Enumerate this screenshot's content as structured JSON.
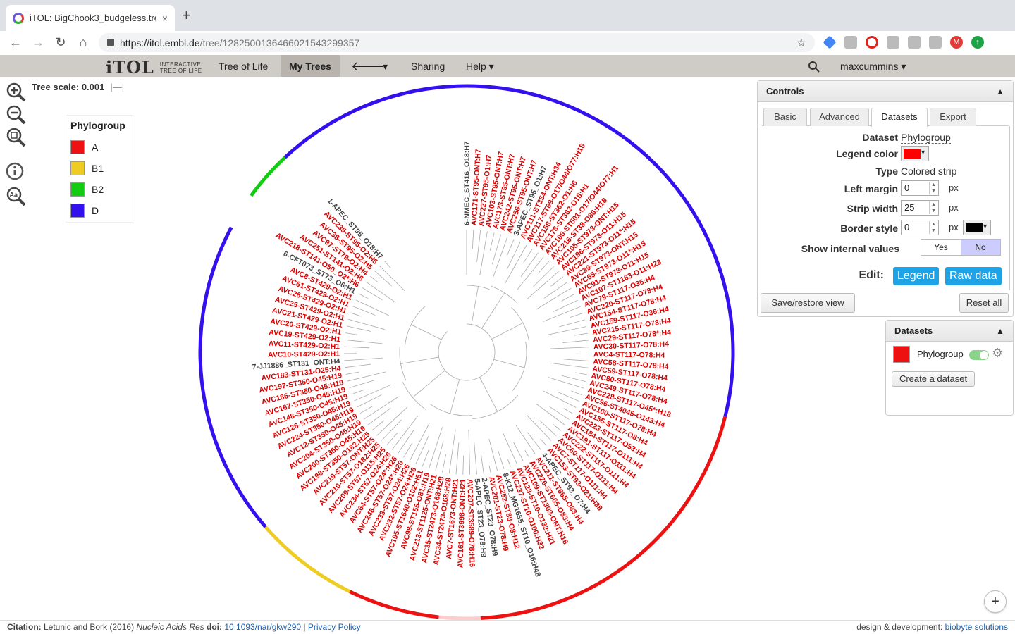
{
  "browser": {
    "tab_title": "iTOL: BigChook3_budgeless.tre",
    "tab_close": "×",
    "new_tab": "+",
    "url_host": "https://itol.embl.de",
    "url_path": "/tree/128250013646602154329935​7",
    "profile_initial": "M"
  },
  "menu": {
    "logo_text": "iTOL",
    "logo_sub_1": "INTERACTIVE",
    "logo_sub_2": "TREE OF LIFE",
    "tree_of_life": "Tree of Life",
    "my_trees": "My Trees",
    "back_arrow": "🡐",
    "dropdown_caret": "▾",
    "sharing": "Sharing",
    "help": "Help ▾",
    "search_icon": "search-icon",
    "user": "maxcummins ▾"
  },
  "tree_scale": {
    "label": "Tree scale: 0.001"
  },
  "legend": {
    "title": "Phylogroup",
    "items": [
      {
        "label": "A",
        "color": "#ee1111"
      },
      {
        "label": "B1",
        "color": "#eecc22"
      },
      {
        "label": "B2",
        "color": "#11cc11"
      },
      {
        "label": "D",
        "color": "#3311ee"
      }
    ]
  },
  "tree": {
    "label_colors": {
      "highlight": "#dd0000",
      "other": "#444444"
    },
    "strip": [
      {
        "from": -43,
        "to": 104,
        "color": "#3311ee"
      },
      {
        "from": 104,
        "to": 177,
        "color": "#ee1111"
      },
      {
        "from": 177,
        "to": 186,
        "color": "#ffcccc"
      },
      {
        "from": 186,
        "to": 206,
        "color": "#ee1111"
      },
      {
        "from": 206,
        "to": 229,
        "color": "#eecc22"
      },
      {
        "from": 229,
        "to": 298,
        "color": "#3311ee"
      },
      {
        "from": 298,
        "to": 306,
        "color": "#ffffff"
      },
      {
        "from": 306,
        "to": 317,
        "color": "#11cc11"
      }
    ],
    "labels": [
      {
        "t": "6-NMEC_ST416_O18:H7",
        "g": 0
      },
      {
        "t": "AVC171-ST95-ONT:H7",
        "g": 1
      },
      {
        "t": "AVC227-ST95-O1:H7",
        "g": 1
      },
      {
        "t": "AVC103-ST95-ONT:H7",
        "g": 1
      },
      {
        "t": "AVC173-ST95-ONT:H7",
        "g": 1
      },
      {
        "t": "AVC242-ST95-ONT:H7",
        "g": 1
      },
      {
        "t": "AVC256-ST95-ONT:H7",
        "g": 1
      },
      {
        "t": "3-APEC_ST95_O1:H7",
        "g": 0
      },
      {
        "t": "AVC111-ST354-ONT:H34",
        "g": 1
      },
      {
        "t": "AVC117-ST69-O17/O44/O77:H18",
        "g": 1
      },
      {
        "t": "AVC158-ST362-O1:H6",
        "g": 1
      },
      {
        "t": "AVC178-ST362-O15:H1",
        "g": 1
      },
      {
        "t": "AVC106-ST501-O17/O44/O77:H1",
        "g": 1
      },
      {
        "t": "AVC216-ST38-O86:H18",
        "g": 1
      },
      {
        "t": "AVC105-ST973-ONT:H15",
        "g": 1
      },
      {
        "t": "AVC196-ST973-O11:H15",
        "g": 1
      },
      {
        "t": "AVC221-ST973-O11*:H15",
        "g": 1
      },
      {
        "t": "AVC39-ST973-ONT:H15",
        "g": 1
      },
      {
        "t": "AVC65-ST973-O11*:H15",
        "g": 1
      },
      {
        "t": "AVC91-ST973-O11:H15",
        "g": 1
      },
      {
        "t": "AVC107-ST1163-O11:H23",
        "g": 1
      },
      {
        "t": "AVC79-ST117-O36:H4",
        "g": 1
      },
      {
        "t": "AVC220-ST117-O78:H4",
        "g": 1
      },
      {
        "t": "AVC154-ST117-O78:H4",
        "g": 1
      },
      {
        "t": "AVC159-ST117-O36:H4",
        "g": 1
      },
      {
        "t": "AVC215-ST117-O78:H4",
        "g": 1
      },
      {
        "t": "AVC29-ST117-O78*:H4",
        "g": 1
      },
      {
        "t": "AVC30-ST117-O78:H4",
        "g": 1
      },
      {
        "t": "AVC4-ST117-O78:H4",
        "g": 1
      },
      {
        "t": "AVC58-ST117-O78:H4",
        "g": 1
      },
      {
        "t": "AVC59-ST117-O78:H4",
        "g": 1
      },
      {
        "t": "AVC80-ST117-O78:H4",
        "g": 1
      },
      {
        "t": "AVC249-ST117-O78:H4",
        "g": 1
      },
      {
        "t": "AVC228-ST117-O45*:H18",
        "g": 1
      },
      {
        "t": "AVC96-ST4045-O143:H4",
        "g": 1
      },
      {
        "t": "AVC160-ST117-O78:H4",
        "g": 1
      },
      {
        "t": "AVC155-ST117-O8:H4",
        "g": 1
      },
      {
        "t": "AVC223-ST117-O53:H4",
        "g": 1
      },
      {
        "t": "AVC184-ST117-O111:H4",
        "g": 1
      },
      {
        "t": "AVC191-ST117-O111:H4",
        "g": 1
      },
      {
        "t": "AVC222-ST117-O111:H4",
        "g": 1
      },
      {
        "t": "AVC60-ST117-O111:H4",
        "g": 1
      },
      {
        "t": "AVC7-ST117-O111:H4",
        "g": 1
      },
      {
        "t": "AVC153-ST93-O21:H38",
        "g": 1
      },
      {
        "t": "4-APEC_ST93_O7:H4",
        "g": 0
      },
      {
        "t": "AVC211-ST665-O83:H4",
        "g": 1
      },
      {
        "t": "AVC226-ST665-O83:H4",
        "g": 1
      },
      {
        "t": "AVC109-ST1303-ONT:H18",
        "g": 1
      },
      {
        "t": "AVC123-ST10-O132:H21",
        "g": 1
      },
      {
        "t": "AVC237-ST10-O100:H32",
        "g": 1
      },
      {
        "t": "8-K12_MG1655_ST10_O16:H48",
        "g": 0
      },
      {
        "t": "AVC252-ST88-O8:H12",
        "g": 1
      },
      {
        "t": "AVC201-ST23-O78:H9",
        "g": 1
      },
      {
        "t": "2-APEC_ST23_O78:H9",
        "g": 0
      },
      {
        "t": "5-APEC_ST23_O78:H9",
        "g": 0
      },
      {
        "t": "AVC207-ST3589-O78:H16",
        "g": 1
      },
      {
        "t": "AVC161-ST3998-ONT:H21",
        "g": 1
      },
      {
        "t": "AVC7-ST1673-ONT:H21",
        "g": 1
      },
      {
        "t": "AVC34-ST2473-O168:H28",
        "g": 1
      },
      {
        "t": "AVC35-ST2473-O168:H28",
        "g": 1
      },
      {
        "t": "AVC213-ST1125-ONT:H21",
        "g": 1
      },
      {
        "t": "AVC98-ST155-O81:H19",
        "g": 1
      },
      {
        "t": "AVC195-ST1640-O102:H51",
        "g": 1
      },
      {
        "t": "AVC232-ST57-O24:H26",
        "g": 1
      },
      {
        "t": "AVC233-ST57-O24:H26",
        "g": 1
      },
      {
        "t": "AVC246-ST57-O24*:H26",
        "g": 1
      },
      {
        "t": "AVC64-ST57-O24*:H26",
        "g": 1
      },
      {
        "t": "AVC234-ST57-O24:H26",
        "g": 1
      },
      {
        "t": "AVC209-ST57-O115:H25",
        "g": 1
      },
      {
        "t": "AVC210-ST57-O182:H25",
        "g": 1
      },
      {
        "t": "AVC219-ST57-ONT:H25",
        "g": 1
      },
      {
        "t": "AVC198-ST350-O182:H25",
        "g": 1
      },
      {
        "t": "AVC200-ST350-O45:H19",
        "g": 1
      },
      {
        "t": "AVC204-ST350-O45:H19",
        "g": 1
      },
      {
        "t": "AVC12-ST350-O45:H19",
        "g": 1
      },
      {
        "t": "AVC224-ST350-O45:H19",
        "g": 1
      },
      {
        "t": "AVC126-ST350-O45:H19",
        "g": 1
      },
      {
        "t": "AVC148-ST350-O45:H19",
        "g": 1
      },
      {
        "t": "AVC167-ST350-O45:H19",
        "g": 1
      },
      {
        "t": "AVC186-ST350-O45:H19",
        "g": 1
      },
      {
        "t": "AVC197-ST350-O45:H19",
        "g": 1
      },
      {
        "t": "AVC183-ST131-O25:H4",
        "g": 1
      },
      {
        "t": "7-JJ1886_ST131_ONT:H4",
        "g": 0
      },
      {
        "t": "AVC10-ST429-O2:H1",
        "g": 1
      },
      {
        "t": "AVC11-ST429-O2:H1",
        "g": 1
      },
      {
        "t": "AVC19-ST429-O2:H1",
        "g": 1
      },
      {
        "t": "AVC20-ST429-O2:H1",
        "g": 1
      },
      {
        "t": "AVC21-ST429-O2:H1",
        "g": 1
      },
      {
        "t": "AVC25-ST429-O2:H1",
        "g": 1
      },
      {
        "t": "AVC26-ST429-O2:H1",
        "g": 1
      },
      {
        "t": "AVC61-ST429-O2:H1",
        "g": 1
      },
      {
        "t": "AVC8-ST429-O2:H1",
        "g": 1
      },
      {
        "t": "6-CFT073_ST73_O6:H1",
        "g": 0
      },
      {
        "t": "AVC218-ST141-O50_O2*:H6",
        "g": 1
      },
      {
        "t": "AVC251-ST141-O2:H6",
        "g": 1
      },
      {
        "t": "AVC97-ST79-O2:H4",
        "g": 1
      },
      {
        "t": "AVC38-ST95-O2:H5",
        "g": 1
      },
      {
        "t": "AVC235-ST95-O2:H5",
        "g": 1
      },
      {
        "t": "1-APEC_ST95_O18:H7",
        "g": 0
      }
    ]
  },
  "controls": {
    "title": "Controls",
    "chevron": "▲",
    "tabs": [
      "Basic",
      "Advanced",
      "Datasets",
      "Export"
    ],
    "dataset_label": "Dataset",
    "dataset_value": "Phylogroup",
    "legend_color_label": "Legend color",
    "legend_color": "#ff0000",
    "type_label": "Type",
    "type_value": "Colored strip",
    "left_margin_label": "Left margin",
    "left_margin_value": "0",
    "strip_width_label": "Strip width",
    "strip_width_value": "25",
    "border_style_label": "Border style",
    "border_style_value": "0",
    "border_color": "#000000",
    "px_unit": "px",
    "internal_label": "Show internal values",
    "yes": "Yes",
    "no": "No",
    "edit_label": "Edit:",
    "legend_btn": "Legend",
    "raw_btn": "Raw data",
    "save_restore": "Save/restore view",
    "reset_all": "Reset all"
  },
  "datasets_panel": {
    "title": "Datasets",
    "chevron": "▲",
    "dataset_name": "Phylogroup",
    "dataset_color": "#ee1111",
    "gear": "⚙",
    "create": "Create a dataset"
  },
  "footer": {
    "citation_label": "Citation:",
    "citation_text": " Letunic and Bork (2016) ",
    "journal": "Nucleic Acids Res",
    "doi_label": " doi: ",
    "doi": "10.1093/nar/gkw290",
    "sep": " | ",
    "privacy": "Privacy Policy",
    "credit": "design & development: ",
    "credit_link": "biobyte solutions"
  },
  "plus": "+"
}
